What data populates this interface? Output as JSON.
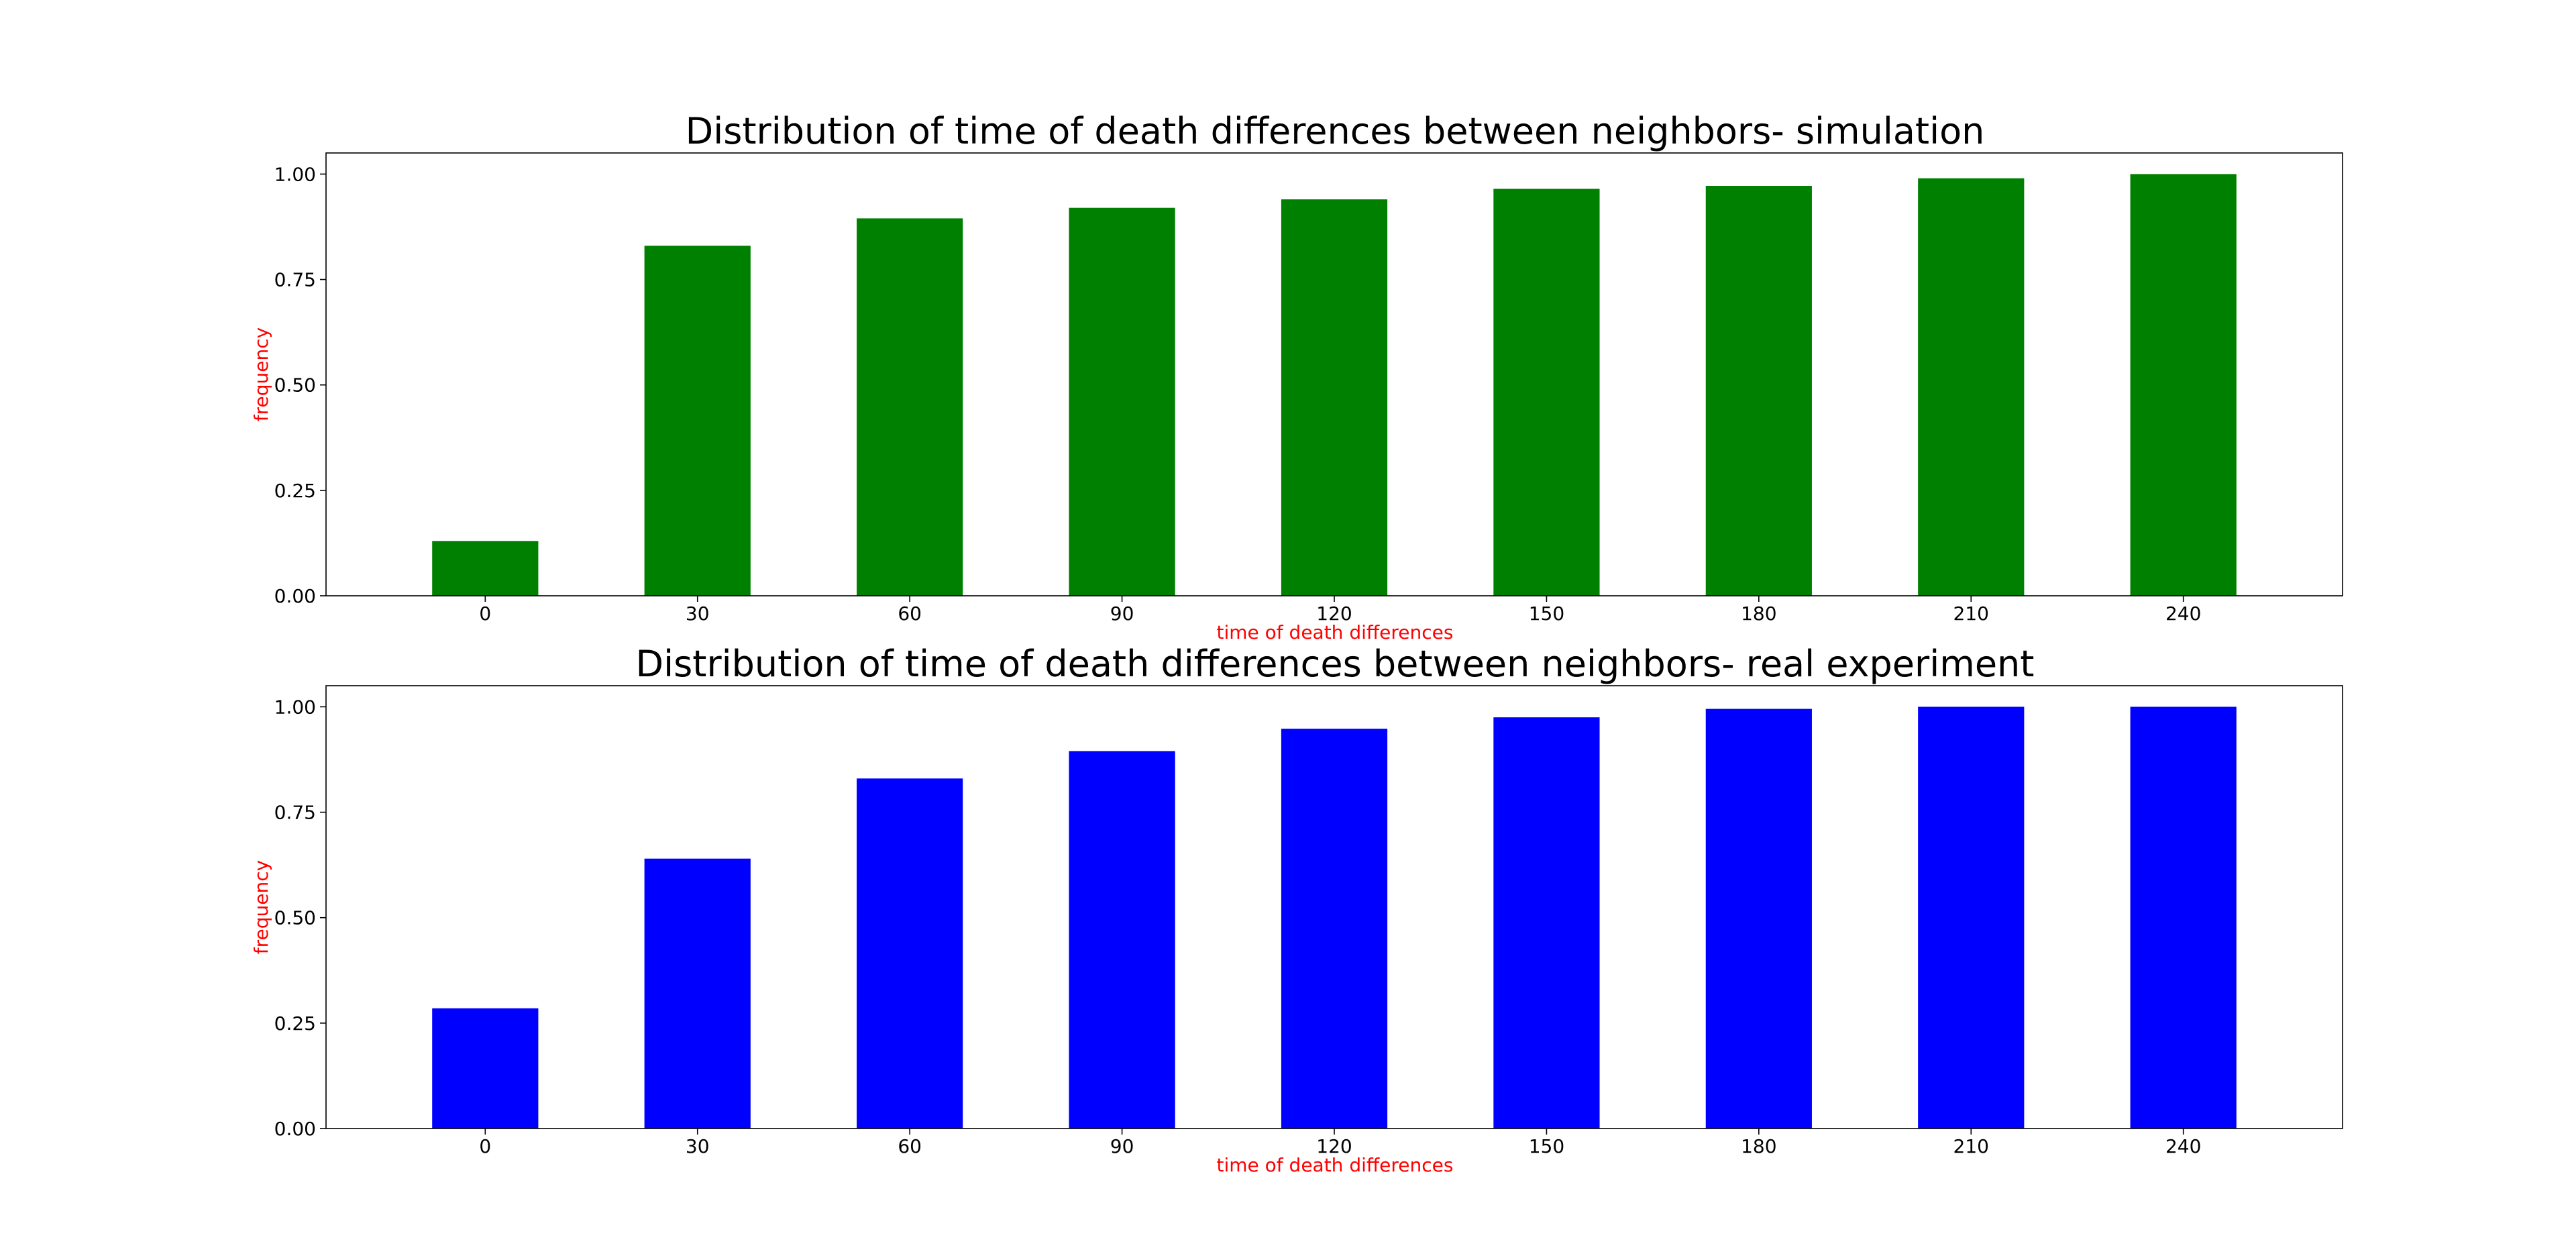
{
  "chart_data": [
    {
      "type": "bar",
      "title": "Distribution of time of death differences between neighbors- simulation",
      "xlabel": "time of death differences",
      "ylabel": "frequency",
      "categories": [
        "0",
        "30",
        "60",
        "90",
        "120",
        "150",
        "180",
        "210",
        "240"
      ],
      "values": [
        0.13,
        0.83,
        0.895,
        0.92,
        0.94,
        0.965,
        0.972,
        0.99,
        1.0
      ],
      "ylim": [
        0,
        1.05
      ],
      "yticks": [
        "0.00",
        "0.25",
        "0.50",
        "0.75",
        "1.00"
      ],
      "grid": false,
      "bar_color": "#008000",
      "label_color": "#ff0000"
    },
    {
      "type": "bar",
      "title": "Distribution of time of death differences between neighbors- real experiment",
      "xlabel": "time of death differences",
      "ylabel": "frequency",
      "categories": [
        "0",
        "30",
        "60",
        "90",
        "120",
        "150",
        "180",
        "210",
        "240"
      ],
      "values": [
        0.285,
        0.64,
        0.83,
        0.895,
        0.948,
        0.975,
        0.995,
        1.0,
        1.0
      ],
      "ylim": [
        0,
        1.05
      ],
      "yticks": [
        "0.00",
        "0.25",
        "0.50",
        "0.75",
        "1.00"
      ],
      "grid": false,
      "bar_color": "#0000ff",
      "label_color": "#ff0000"
    }
  ]
}
